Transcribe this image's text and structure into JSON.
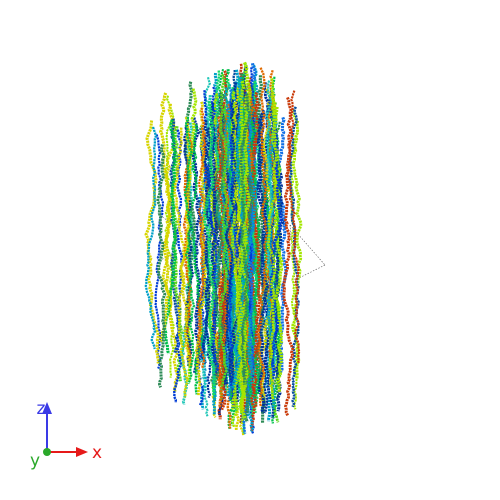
{
  "viewer": {
    "background": "#ffffff",
    "strand_colors": [
      "#00c04b",
      "#16d96b",
      "#e06a00",
      "#c93a0a",
      "#00339b",
      "#003cd6",
      "#1170e6",
      "#00a0c8",
      "#21c7b8",
      "#5ad61a",
      "#a3e600",
      "#d7d400",
      "#2e8b57",
      "#0a4fa0"
    ]
  },
  "axes": {
    "z": {
      "label": "z",
      "color": "#3a3ae6"
    },
    "x": {
      "label": "x",
      "color": "#e61919"
    },
    "y": {
      "label": "y",
      "color": "#2aa82a"
    }
  }
}
